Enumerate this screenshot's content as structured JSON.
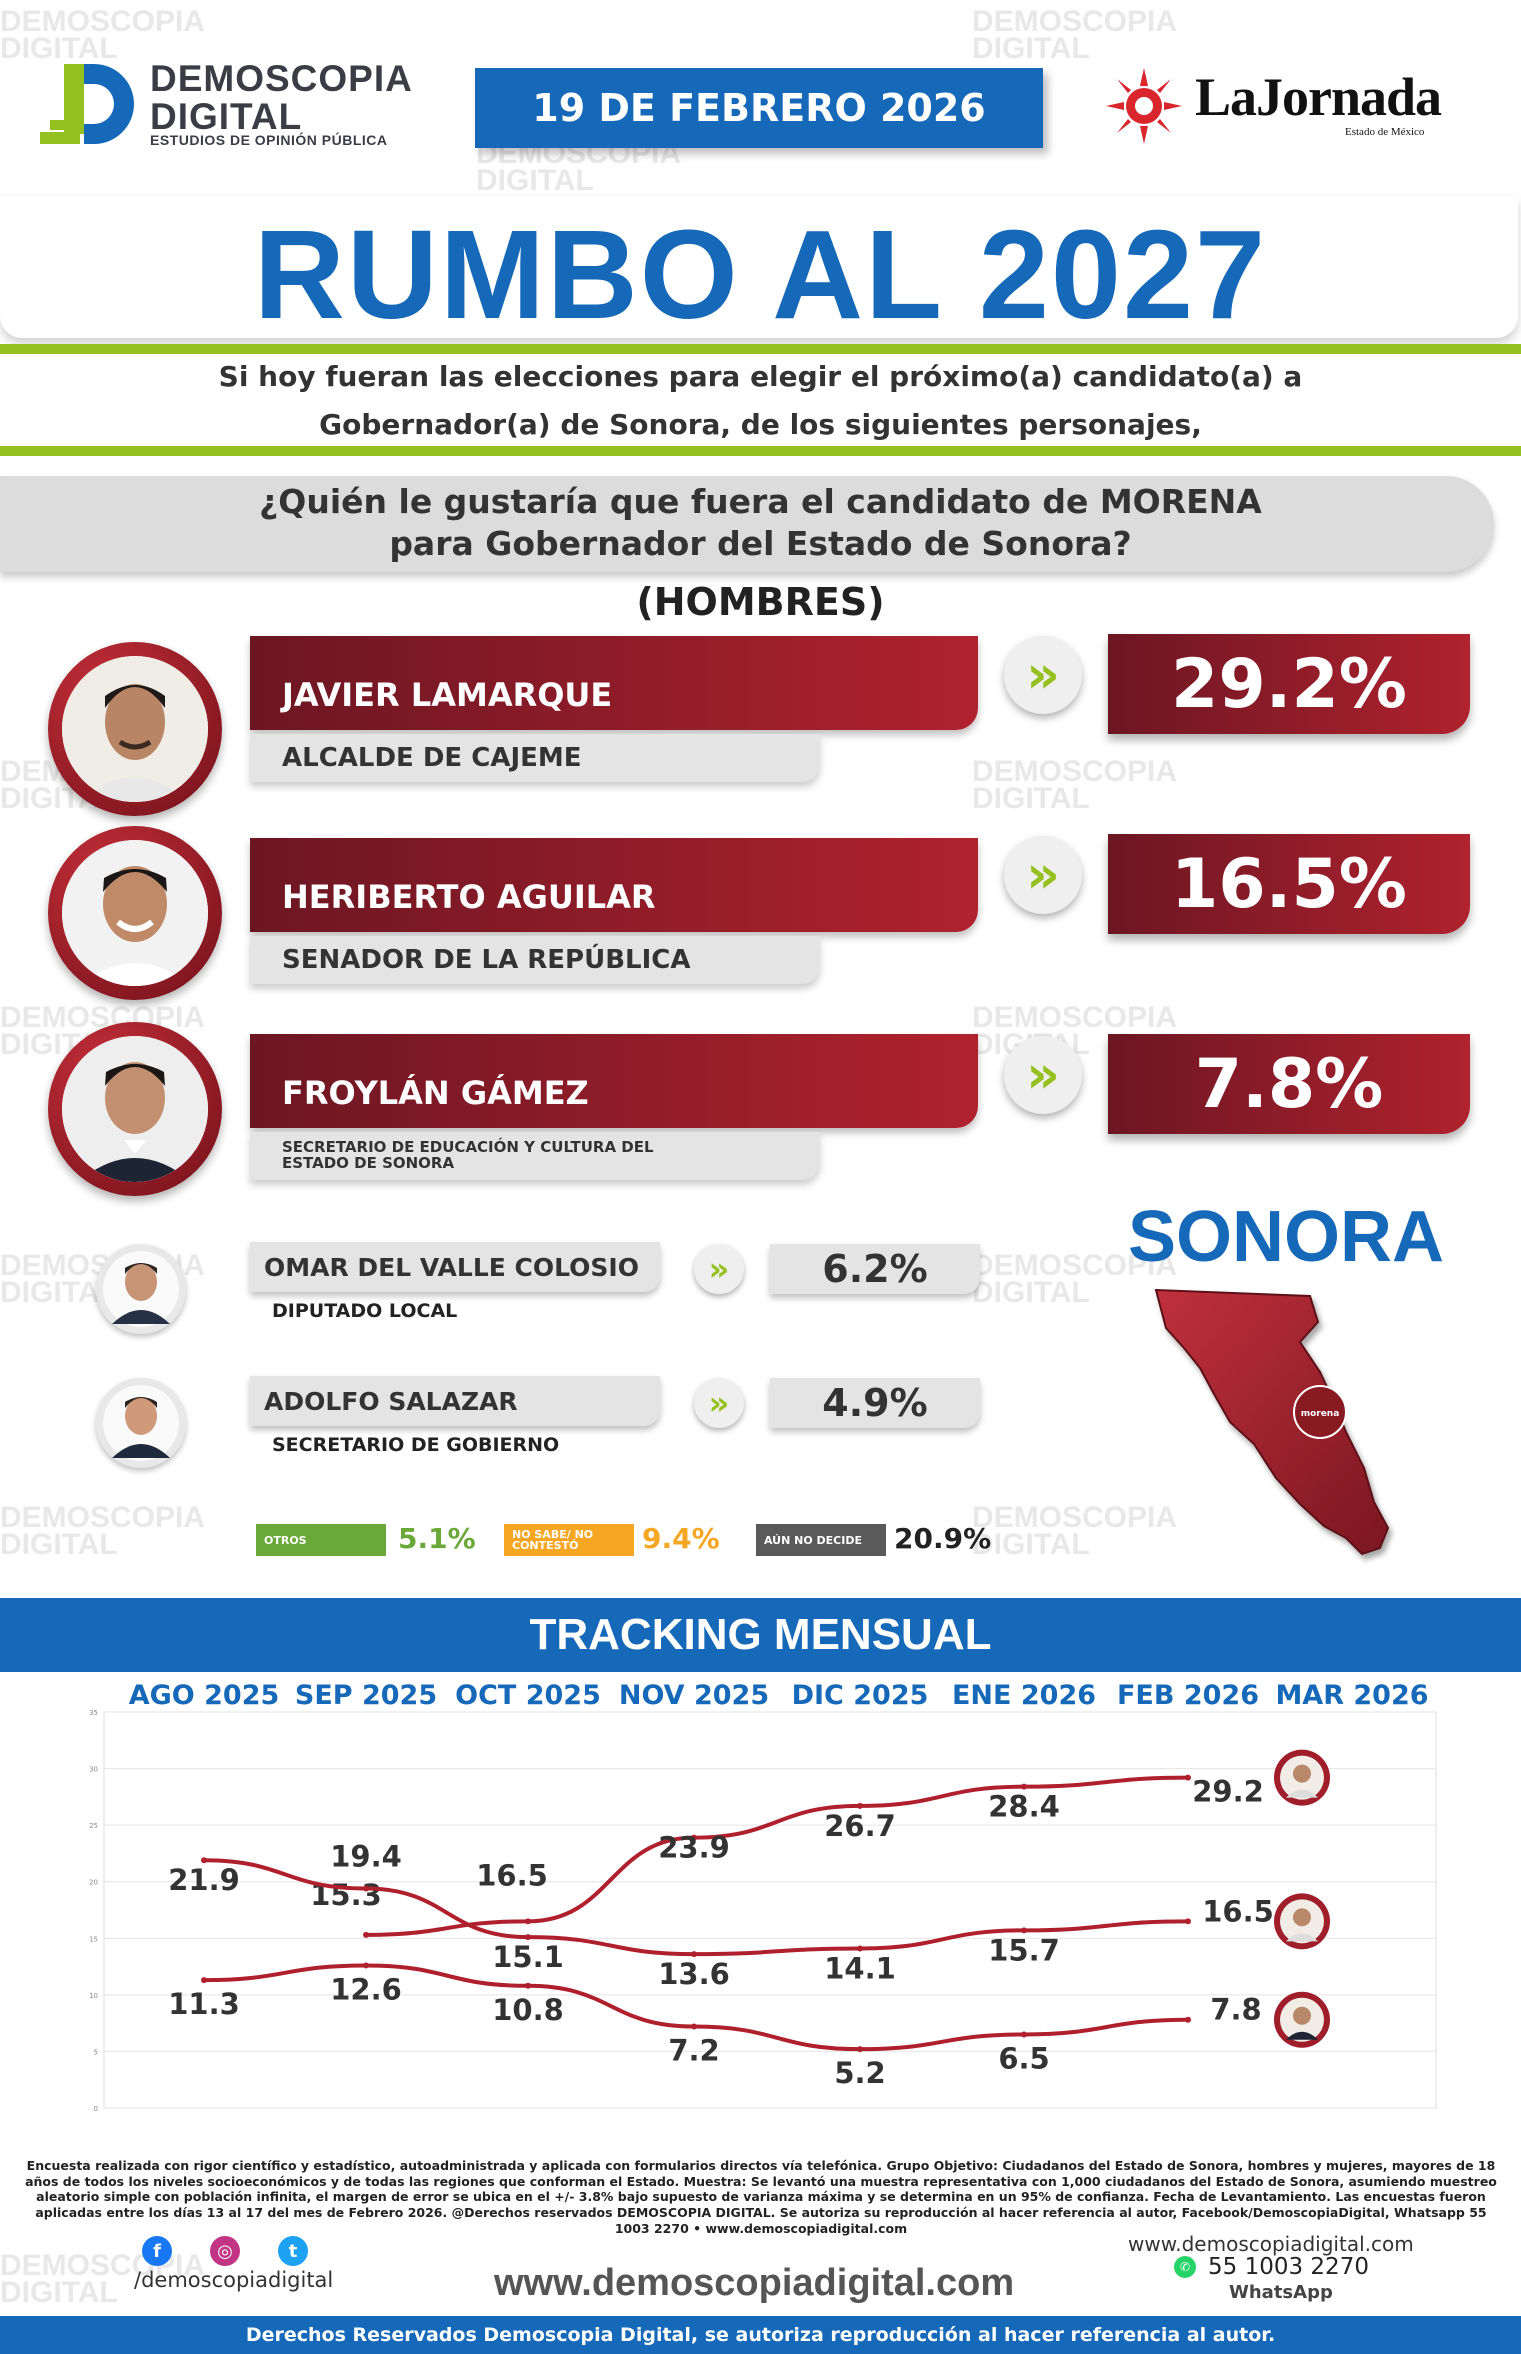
{
  "header": {
    "brand_line1": "DEMOSCOPIA",
    "brand_line2": "DIGITAL",
    "brand_tagline": "ESTUDIOS DE OPINIÓN PÚBLICA",
    "date": "19 DE FEBRERO 2026",
    "partner_name": "LaJornada",
    "partner_sub": "Estado de México"
  },
  "title": "RUMBO AL 2027",
  "intro_line1": "Si hoy fueran las elecciones para elegir el próximo(a) candidato(a) a",
  "intro_line2": "Gobernador(a) de Sonora, de los siguientes personajes,",
  "question_line1": "¿Quién le gustaría que fuera el candidato de MORENA",
  "question_line2": "para Gobernador del Estado de Sonora?",
  "segment": "(HOMBRES)",
  "chevron": "»",
  "state_name": "SONORA",
  "map_badge": "morena",
  "colors": {
    "brand_blue": "#1668b8",
    "accent_green": "#94c11f",
    "morena_red": "#a01e2a"
  },
  "chart_data": [
    {
      "type": "bar",
      "title": "¿Quién le gustaría que fuera el candidato de MORENA para Gobernador del Estado de Sonora?",
      "categories": [
        "JAVIER LAMARQUE",
        "HERIBERTO AGUILAR",
        "FROYLÁN GÁMEZ",
        "OMAR DEL VALLE COLOSIO",
        "ADOLFO SALAZAR"
      ],
      "roles": [
        "ALCALDE DE CAJEME",
        "SENADOR DE LA REPÚBLICA",
        "SECRETARIO DE EDUCACIÓN Y CULTURA DEL ESTADO DE SONORA",
        "DIPUTADO LOCAL",
        "SECRETARIO DE GOBIERNO"
      ],
      "values": [
        29.2,
        16.5,
        7.8,
        6.2,
        4.9
      ],
      "value_labels": [
        "29.2%",
        "16.5%",
        "7.8%",
        "6.2%",
        "4.9%"
      ],
      "others": [
        {
          "label": "OTROS",
          "value_label": "5.1%",
          "color": "#6aa83a"
        },
        {
          "label": "NO SABE/ NO CONTESTÓ",
          "value_label": "9.4%",
          "color": "#f5a623"
        },
        {
          "label": "AÚN NO DECIDE",
          "value_label": "20.9%",
          "color": "#5a5a5a"
        }
      ]
    },
    {
      "type": "line",
      "title": "TRACKING MENSUAL",
      "categories": [
        "AGO 2025",
        "SEP 2025",
        "OCT 2025",
        "NOV 2025",
        "DIC 2025",
        "ENE 2026",
        "FEB 2026",
        "MAR 2026"
      ],
      "ylim": [
        0,
        35
      ],
      "yticks": [
        "0",
        "5",
        "10",
        "15",
        "20",
        "25",
        "30",
        "35"
      ],
      "grid": true,
      "series": [
        {
          "points": [
            [
              1,
              15.3
            ],
            [
              2,
              16.5
            ],
            [
              3,
              23.9
            ],
            [
              4,
              26.7
            ],
            [
              5,
              28.4
            ],
            [
              6,
              29.2
            ]
          ],
          "labels": [
            "15.3",
            "16.5",
            "23.9",
            "26.7",
            "28.4",
            "29.2"
          ]
        },
        {
          "points": [
            [
              0,
              21.9
            ],
            [
              1,
              19.4
            ],
            [
              2,
              15.1
            ],
            [
              3,
              13.6
            ],
            [
              4,
              14.1
            ],
            [
              5,
              15.7
            ],
            [
              6,
              16.5
            ]
          ],
          "labels": [
            "21.9",
            "19.4",
            "15.1",
            "13.6",
            "14.1",
            "15.7",
            "16.5"
          ]
        },
        {
          "points": [
            [
              0,
              11.3
            ],
            [
              1,
              12.6
            ],
            [
              2,
              10.8
            ],
            [
              3,
              7.2
            ],
            [
              4,
              5.2
            ],
            [
              5,
              6.5
            ],
            [
              6,
              7.8
            ]
          ],
          "labels": [
            "11.3",
            "12.6",
            "10.8",
            "7.2",
            "5.2",
            "6.5",
            "7.8"
          ]
        }
      ]
    }
  ],
  "footer": {
    "methodology": "Encuesta realizada con rigor científico y estadístico, autoadministrada y aplicada con formularios directos vía telefónica. Grupo Objetivo: Ciudadanos del Estado de Sonora, hombres y mujeres, mayores de 18 años de todos los niveles socioeconómicos y de todas las regiones que conforman el Estado. Muestra: Se levantó una muestra representativa con 1,000 ciudadanos del Estado de Sonora, asumiendo muestreo aleatorio simple con población infinita, el margen de error se ubica en el +/- 3.8% bajo supuesto de varianza máxima y se determina en un 95% de confianza. Fecha de Levantamiento. Las encuestas fueron aplicadas entre los días 13 al 17 del mes de Febrero 2026. @Derechos reservados DEMOSCOPIA DIGITAL. Se autoriza su reproducción al hacer referencia al autor, Facebook/DemoscopiaDigital, Whatsapp 55 1003 2270 • www.demoscopiadigital.com",
    "handle": "/demoscopiadigital",
    "website": "www.demoscopiadigital.com",
    "website_small": "www.demoscopiadigital.com",
    "phone": "55 1003 2270",
    "whatsapp_label": "WhatsApp",
    "rights": "Derechos Reservados Demoscopia Digital, se autoriza reproducción al hacer referencia al autor."
  },
  "watermark": {
    "line1": "DEMOSCOPIA",
    "line2": "DIGITAL"
  }
}
